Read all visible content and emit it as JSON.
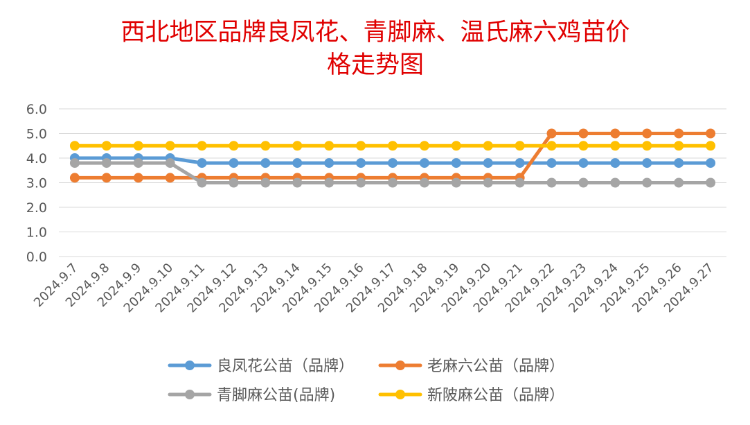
{
  "chart_data": {
    "type": "line",
    "title_line1": "西北地区品牌良凤花、青脚麻、温氏麻六鸡苗价",
    "title_line2": "格走势图",
    "title_color": "#e00000",
    "categories": [
      "2024.9.7",
      "2024.9.8",
      "2024.9.9",
      "2024.9.10",
      "2024.9.11",
      "2024.9.12",
      "2024.9.13",
      "2024.9.14",
      "2024.9.15",
      "2024.9.16",
      "2024.9.17",
      "2024.9.18",
      "2024.9.19",
      "2024.9.20",
      "2024.9.21",
      "2024.9.22",
      "2024.9.23",
      "2024.9.24",
      "2024.9.25",
      "2024.9.26",
      "2024.9.27"
    ],
    "ylim": [
      0,
      6
    ],
    "yticks": [
      "0.0",
      "1.0",
      "2.0",
      "3.0",
      "4.0",
      "5.0",
      "6.0"
    ],
    "grid": true,
    "legend_position": "bottom",
    "series": [
      {
        "name": "良凤花公苗（品牌）",
        "color": "#5b9bd5",
        "values": [
          4.0,
          4.0,
          4.0,
          4.0,
          3.8,
          3.8,
          3.8,
          3.8,
          3.8,
          3.8,
          3.8,
          3.8,
          3.8,
          3.8,
          3.8,
          3.8,
          3.8,
          3.8,
          3.8,
          3.8,
          3.8
        ]
      },
      {
        "name": "老麻六公苗（品牌）",
        "color": "#ed7d31",
        "values": [
          3.2,
          3.2,
          3.2,
          3.2,
          3.2,
          3.2,
          3.2,
          3.2,
          3.2,
          3.2,
          3.2,
          3.2,
          3.2,
          3.2,
          3.2,
          5.0,
          5.0,
          5.0,
          5.0,
          5.0,
          5.0
        ]
      },
      {
        "name": "青脚麻公苗(品牌)",
        "color": "#a5a5a5",
        "values": [
          3.8,
          3.8,
          3.8,
          3.8,
          3.0,
          3.0,
          3.0,
          3.0,
          3.0,
          3.0,
          3.0,
          3.0,
          3.0,
          3.0,
          3.0,
          3.0,
          3.0,
          3.0,
          3.0,
          3.0,
          3.0
        ]
      },
      {
        "name": "新陂麻公苗（品牌）",
        "color": "#ffc000",
        "values": [
          4.5,
          4.5,
          4.5,
          4.5,
          4.5,
          4.5,
          4.5,
          4.5,
          4.5,
          4.5,
          4.5,
          4.5,
          4.5,
          4.5,
          4.5,
          4.5,
          4.5,
          4.5,
          4.5,
          4.5,
          4.5
        ]
      }
    ]
  }
}
